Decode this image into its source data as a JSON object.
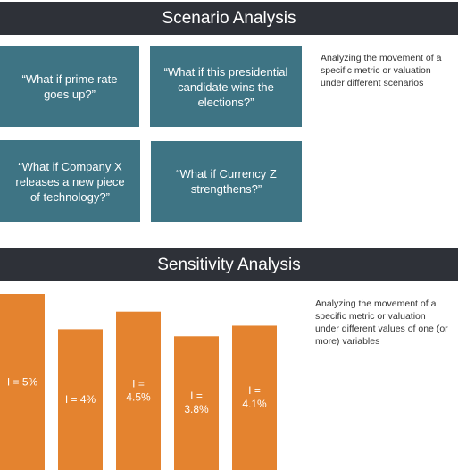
{
  "scenario": {
    "title": "Scenario Analysis",
    "boxes": [
      "“What if prime rate goes up?”",
      "“What if this presidential candidate wins the elections?”",
      "“What if Company X releases a new piece of technology?”",
      "“What if Currency Z strengthens?”"
    ],
    "description": "Analyzing the movement of a specific metric or valuation under different scenarios"
  },
  "sensitivity": {
    "title": "Sensitivity Analysis",
    "description": "Analyzing the movement of a specific metric or valuation under different values of one (or more) variables"
  },
  "chart_data": {
    "type": "bar",
    "categories": [
      "I = 5%",
      "I = 4%",
      "I = 4.5%",
      "I = 3.8%",
      "I = 4.1%"
    ],
    "values": [
      5,
      4,
      4.5,
      3.8,
      4.1
    ],
    "bar_color": "#e4832f"
  },
  "colors": {
    "header_bg": "#2e3138",
    "scenario_box": "#3e7484",
    "bar": "#e4832f"
  }
}
